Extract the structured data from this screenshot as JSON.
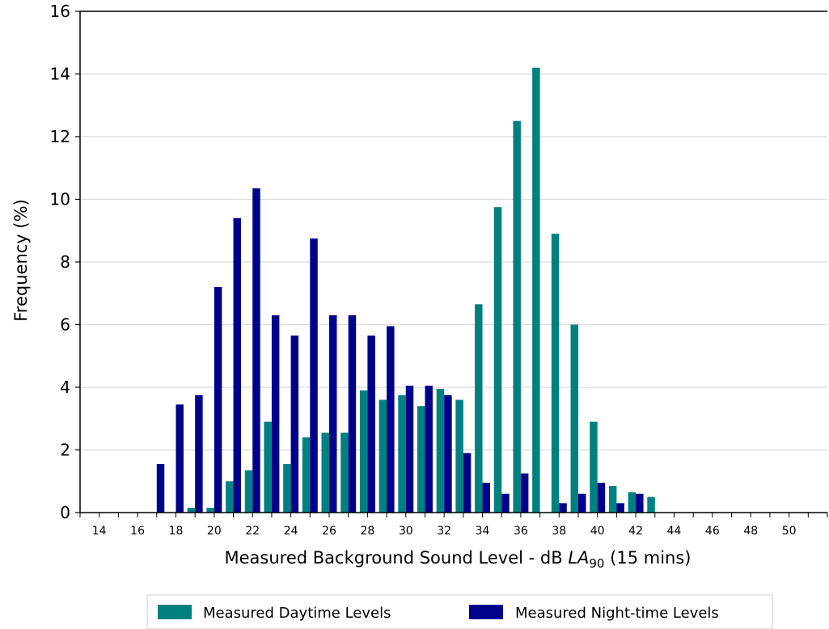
{
  "chart_data": {
    "type": "bar",
    "x": [
      17,
      18,
      19,
      20,
      21,
      22,
      23,
      24,
      25,
      26,
      27,
      28,
      29,
      30,
      31,
      32,
      33,
      34,
      35,
      36,
      37,
      38,
      39,
      40,
      41,
      42,
      43
    ],
    "series": [
      {
        "name": "Measured Daytime Levels",
        "color": "#008080",
        "values": [
          0,
          0,
          0.15,
          0.15,
          1.0,
          1.35,
          2.9,
          1.55,
          2.4,
          2.55,
          2.55,
          3.9,
          3.6,
          3.75,
          3.4,
          3.95,
          3.6,
          6.65,
          9.75,
          12.5,
          14.2,
          8.9,
          6.0,
          2.9,
          0.85,
          0.65,
          0.5
        ]
      },
      {
        "name": "Measured Night-time Levels",
        "color": "#00008b",
        "values": [
          1.55,
          3.45,
          3.75,
          7.2,
          9.4,
          10.35,
          6.3,
          5.65,
          8.75,
          6.3,
          6.3,
          5.65,
          5.95,
          4.05,
          4.05,
          3.75,
          1.9,
          0.95,
          0.6,
          1.25,
          0,
          0.3,
          0.6,
          0.95,
          0.3,
          0.6,
          0
        ]
      }
    ],
    "title": "",
    "xlabel_parts": [
      "Measured Background Sound Level - dB ",
      "LA",
      "90",
      " (15 mins)"
    ],
    "ylabel": "Frequency (%)",
    "xlim": [
      13,
      52
    ],
    "ylim": [
      0,
      16
    ],
    "x_ticks": [
      14,
      16,
      18,
      20,
      22,
      24,
      26,
      28,
      30,
      32,
      34,
      36,
      38,
      40,
      42,
      44,
      46,
      48,
      50
    ],
    "y_ticks": [
      0,
      2,
      4,
      6,
      8,
      10,
      12,
      14,
      16
    ],
    "grid": "horizontal",
    "legend_position": "bottom-center"
  }
}
